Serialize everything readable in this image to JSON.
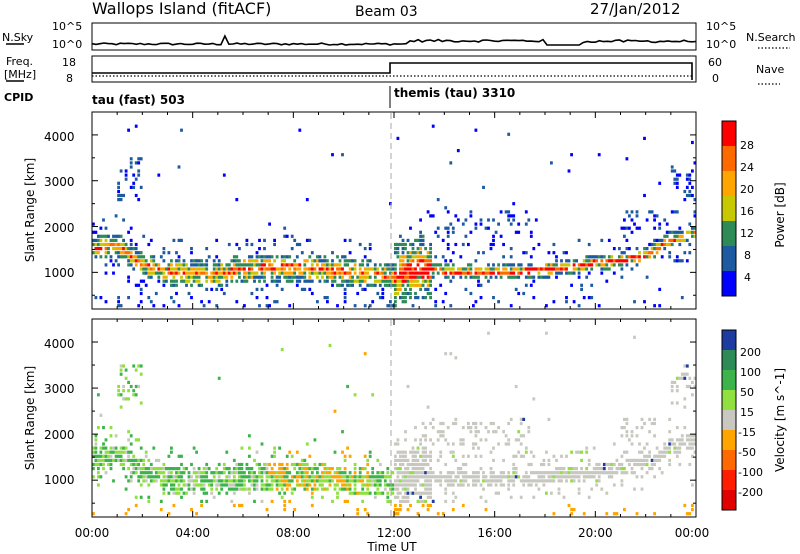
{
  "header": {
    "site": "Wallops Island (fitACF)",
    "beam": "Beam 03",
    "date": "27/Jan/2012"
  },
  "strip_labels": {
    "nsky": "N.Sky",
    "nsearch": "N.Search",
    "freq_line1": "Freq.",
    "freq_line2": "[MHz]",
    "nave": "Nave",
    "cpid": "CPID"
  },
  "noise_axis_left": [
    "10^5",
    "10^0"
  ],
  "noise_axis_right": [
    "10^5",
    "10^0"
  ],
  "freq_ticks": [
    "18",
    "8"
  ],
  "nave_ticks": [
    "60",
    "0"
  ],
  "cpid_segments": [
    {
      "label": "tau (fast) 503",
      "start_hour": 0,
      "end_hour": 12
    },
    {
      "label": "themis (tau) 3310",
      "start_hour": 12,
      "end_hour": 24
    }
  ],
  "x_axis": {
    "label": "Time UT",
    "ticks": [
      "00:00",
      "04:00",
      "08:00",
      "12:00",
      "16:00",
      "20:00",
      "00:00"
    ]
  },
  "power_panel": {
    "ylabel": "Slant Range [km]",
    "yticks": [
      "4000",
      "3000",
      "2000",
      "1000"
    ],
    "cbar_label": "Power [dB]",
    "cbar_ticks": [
      "28",
      "24",
      "20",
      "16",
      "12",
      "8",
      "4"
    ],
    "cbar_colors": [
      "#ff0000",
      "#ff6a00",
      "#ffa500",
      "#c8c800",
      "#2e8b57",
      "#1e5aa0",
      "#0000ff"
    ]
  },
  "velocity_panel": {
    "ylabel": "Slant Range [km]",
    "yticks": [
      "4000",
      "3000",
      "2000",
      "1000"
    ],
    "cbar_label": "Velocity [m s^-1]",
    "cbar_ticks": [
      "200",
      "100",
      "50",
      "15",
      "-15",
      "-50",
      "-100",
      "-200"
    ],
    "cbar_colors": [
      "#1e3ca0",
      "#2e8b57",
      "#3cb44b",
      "#90e040",
      "#c8c8c0",
      "#ffa500",
      "#ff6a00",
      "#ff1e00",
      "#e00000"
    ]
  },
  "chart_data": {
    "type": "heatmap",
    "x_unit": "hour UT",
    "xlim": [
      0,
      24
    ],
    "ylim_km": [
      200,
      4500
    ],
    "power_dB_band_center_km": {
      "hours": [
        0,
        1,
        2,
        3,
        4,
        5,
        6,
        7,
        8,
        9,
        10,
        11,
        12,
        13,
        14,
        15,
        16,
        17,
        18,
        19,
        20,
        21,
        22,
        23,
        24
      ],
      "range_km": [
        1500,
        1600,
        1150,
        1000,
        950,
        950,
        1050,
        1100,
        1100,
        1050,
        1000,
        950,
        900,
        1100,
        1000,
        1000,
        1000,
        1000,
        1050,
        1100,
        1200,
        1250,
        1350,
        1700,
        1850
      ]
    },
    "velocity_dominant": {
      "00-11 hour": "15 to 100 m/s (green), 2000-500 km",
      "12-24 hour": "-15 to 15 m/s (grey), 2000-1000 km"
    }
  }
}
